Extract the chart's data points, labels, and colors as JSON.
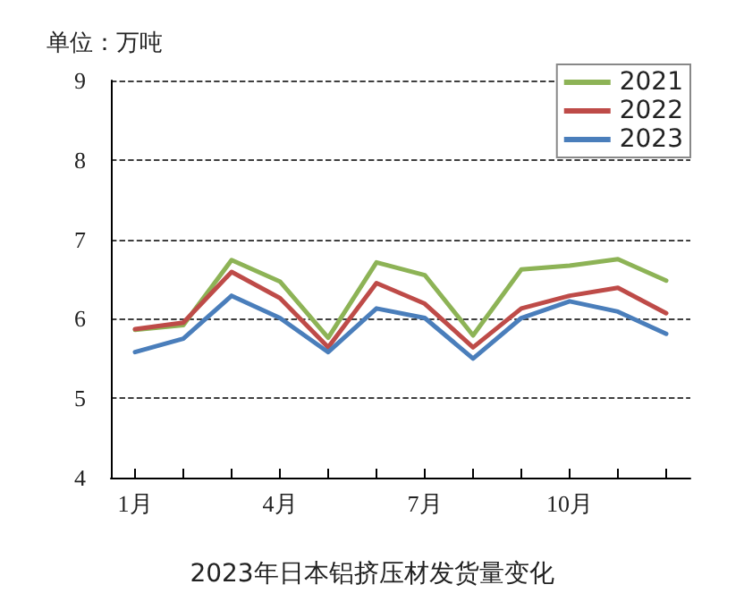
{
  "chart_data": {
    "type": "line",
    "title": "2023年日本铝挤压材发货量变化",
    "ylabel": "单位：万吨",
    "categories": [
      "1月",
      null,
      null,
      "4月",
      null,
      null,
      "7月",
      null,
      null,
      "10月",
      null,
      null
    ],
    "series": [
      {
        "name": "2021",
        "color": "#8db356",
        "values": [
          5.86,
          5.92,
          6.74,
          6.47,
          5.76,
          6.71,
          6.55,
          5.79,
          6.62,
          6.67,
          6.75,
          6.48
        ]
      },
      {
        "name": "2022",
        "color": "#be4b48",
        "values": [
          5.87,
          5.95,
          6.59,
          6.26,
          5.64,
          6.45,
          6.19,
          5.64,
          6.13,
          6.29,
          6.39,
          6.07
        ]
      },
      {
        "name": "2023",
        "color": "#4a7ebb",
        "values": [
          5.58,
          5.75,
          6.29,
          6.01,
          5.58,
          6.13,
          6.01,
          5.5,
          6.01,
          6.22,
          6.09,
          5.81
        ]
      }
    ],
    "ylim": [
      4,
      9
    ],
    "yticks": [
      4,
      5,
      6,
      7,
      8,
      9
    ],
    "grid": "y",
    "legend": "top right",
    "marker": "none",
    "line_style": "solid"
  }
}
